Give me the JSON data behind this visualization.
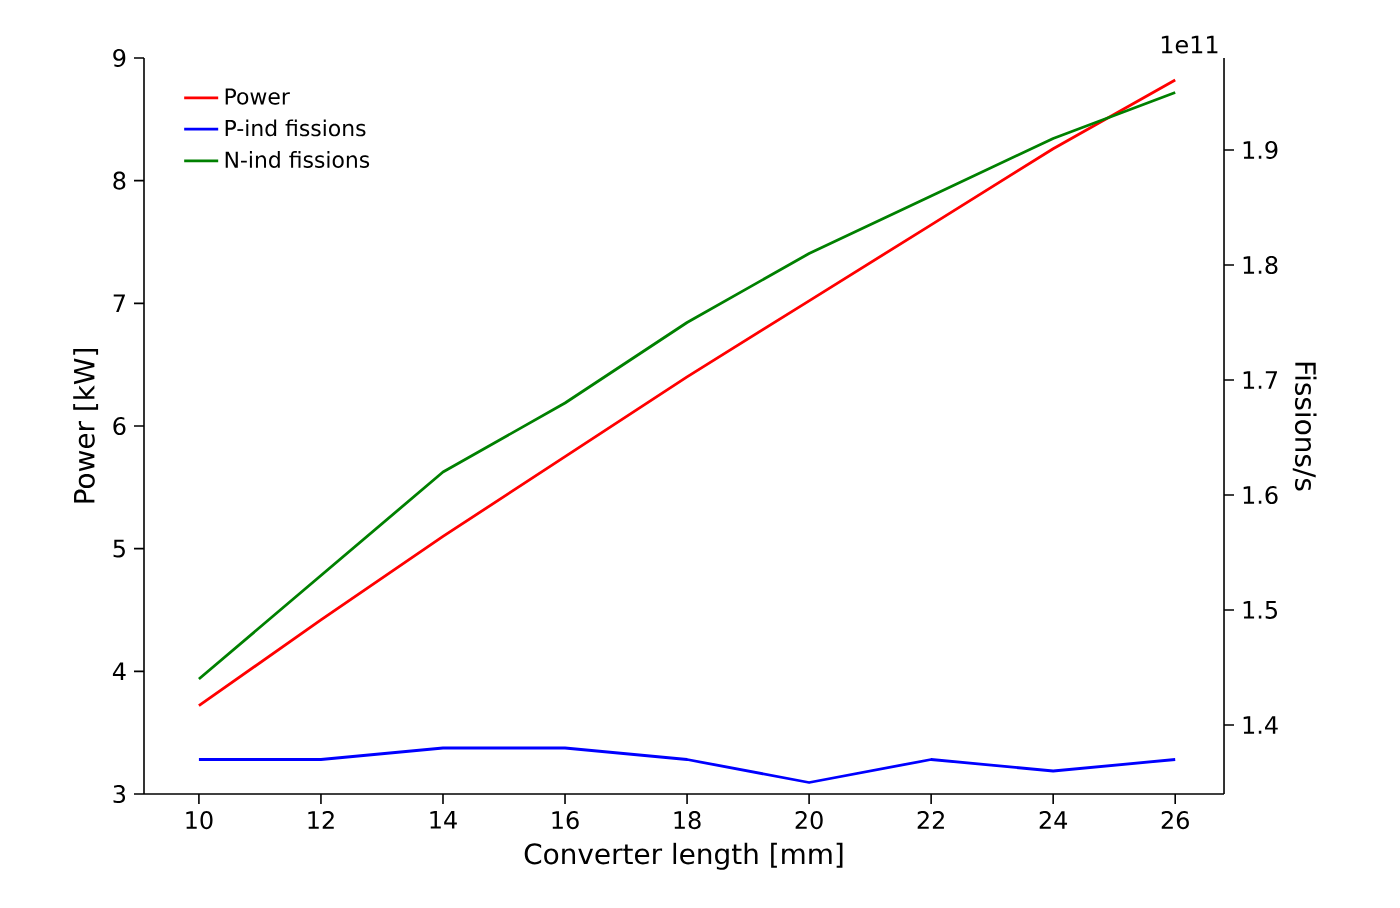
{
  "chart_data": {
    "type": "line",
    "xlabel": "Converter length [mm]",
    "ylabel": "Power [kW]",
    "y2label": "Fissions/s",
    "x": [
      10,
      12,
      14,
      16,
      18,
      20,
      22,
      24,
      26
    ],
    "series": [
      {
        "name": "Power",
        "color": "#ff0000",
        "values": [
          3.72,
          4.42,
          5.1,
          5.75,
          6.4,
          7.02,
          7.64,
          8.26,
          8.82
        ]
      },
      {
        "name": "P-ind fissions",
        "color": "#0000ff",
        "axis": "y2",
        "values": [
          1.37,
          1.37,
          1.38,
          1.38,
          1.37,
          1.35,
          1.37,
          1.36,
          1.37
        ]
      },
      {
        "name": "N-ind fissions",
        "color": "#008000",
        "axis": "y2",
        "values": [
          1.44,
          1.53,
          1.62,
          1.68,
          1.75,
          1.81,
          1.86,
          1.91,
          1.95
        ]
      }
    ],
    "xlim": [
      9.1,
      26.8
    ],
    "xticks": [
      10,
      12,
      14,
      16,
      18,
      20,
      22,
      24,
      26
    ],
    "ylim": [
      3,
      9
    ],
    "yticks": [
      3,
      4,
      5,
      6,
      7,
      8,
      9
    ],
    "y2lim": [
      1.34,
      1.98
    ],
    "y2ticks": [
      1.4,
      1.5,
      1.6,
      1.7,
      1.8,
      1.9
    ],
    "annotations": [
      "1e11"
    ],
    "legend": "top left",
    "grid": false,
    "marker": "none",
    "line_style": "solid"
  }
}
